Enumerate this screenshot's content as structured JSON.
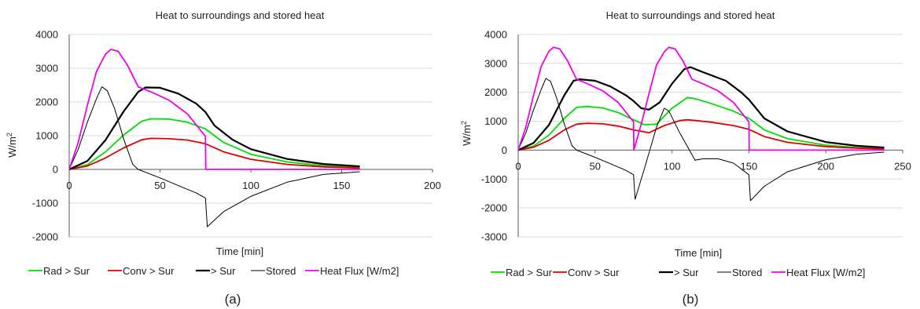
{
  "figure": {
    "captions": [
      "(a)",
      "(b)"
    ]
  },
  "chart_data": [
    {
      "type": "line",
      "title": "Heat to surroundings and stored heat",
      "xlabel": "Time [min]",
      "ylabel": "W/m",
      "ylabel_sup": "2",
      "xlim": [
        0,
        200
      ],
      "ylim": [
        -2000,
        4000
      ],
      "xticks": [
        0,
        50,
        100,
        150,
        200
      ],
      "yticks": [
        -2000,
        -1000,
        0,
        1000,
        2000,
        3000,
        4000
      ],
      "grid": "horizontal",
      "legend_position": "bottom",
      "colors": [
        "#00dd00",
        "#e00000",
        "#000000",
        "#000000",
        "#ee00ee"
      ],
      "series": [
        {
          "name": "Rad > Sur",
          "points": [
            [
              0,
              0
            ],
            [
              10,
              140
            ],
            [
              20,
              520
            ],
            [
              30,
              1020
            ],
            [
              40,
              1430
            ],
            [
              45,
              1500
            ],
            [
              55,
              1490
            ],
            [
              65,
              1400
            ],
            [
              75,
              1200
            ],
            [
              85,
              800
            ],
            [
              100,
              450
            ],
            [
              120,
              220
            ],
            [
              140,
              110
            ],
            [
              160,
              60
            ]
          ]
        },
        {
          "name": "Conv > Sur",
          "points": [
            [
              0,
              0
            ],
            [
              10,
              100
            ],
            [
              20,
              340
            ],
            [
              30,
              640
            ],
            [
              40,
              880
            ],
            [
              45,
              920
            ],
            [
              55,
              910
            ],
            [
              65,
              870
            ],
            [
              75,
              760
            ],
            [
              85,
              520
            ],
            [
              100,
              300
            ],
            [
              120,
              150
            ],
            [
              140,
              75
            ],
            [
              160,
              40
            ]
          ]
        },
        {
          "name": "> Sur",
          "points": [
            [
              0,
              0
            ],
            [
              10,
              250
            ],
            [
              20,
              870
            ],
            [
              30,
              1720
            ],
            [
              38,
              2300
            ],
            [
              42,
              2430
            ],
            [
              50,
              2420
            ],
            [
              60,
              2250
            ],
            [
              70,
              1950
            ],
            [
              75,
              1700
            ],
            [
              80,
              1300
            ],
            [
              90,
              880
            ],
            [
              100,
              600
            ],
            [
              120,
              310
            ],
            [
              140,
              160
            ],
            [
              160,
              90
            ]
          ]
        },
        {
          "name": "Stored",
          "points": [
            [
              0,
              0
            ],
            [
              5,
              600
            ],
            [
              10,
              1400
            ],
            [
              15,
              2100
            ],
            [
              18,
              2450
            ],
            [
              21,
              2330
            ],
            [
              25,
              1800
            ],
            [
              30,
              900
            ],
            [
              35,
              150
            ],
            [
              38,
              0
            ],
            [
              50,
              -250
            ],
            [
              60,
              -480
            ],
            [
              70,
              -700
            ],
            [
              75,
              -850
            ],
            [
              76,
              -1700
            ],
            [
              85,
              -1250
            ],
            [
              100,
              -800
            ],
            [
              120,
              -380
            ],
            [
              140,
              -150
            ],
            [
              160,
              -70
            ]
          ]
        },
        {
          "name": "Heat Flux [W/m2]",
          "points": [
            [
              0,
              0
            ],
            [
              5,
              800
            ],
            [
              10,
              1900
            ],
            [
              15,
              2900
            ],
            [
              20,
              3420
            ],
            [
              23,
              3560
            ],
            [
              27,
              3500
            ],
            [
              32,
              3100
            ],
            [
              38,
              2450
            ],
            [
              45,
              2300
            ],
            [
              55,
              2050
            ],
            [
              65,
              1650
            ],
            [
              75,
              980
            ],
            [
              75.2,
              0
            ],
            [
              160,
              0
            ]
          ]
        }
      ]
    },
    {
      "type": "line",
      "title": "Heat to surroundings and stored heat",
      "xlabel": "Time [min]",
      "ylabel": "W/m",
      "ylabel_sup": "2",
      "xlim": [
        0,
        250
      ],
      "ylim": [
        -3000,
        4000
      ],
      "xticks": [
        0,
        50,
        100,
        150,
        200,
        250
      ],
      "yticks": [
        -3000,
        -2000,
        -1000,
        0,
        1000,
        2000,
        3000,
        4000
      ],
      "grid": "horizontal",
      "legend_position": "bottom",
      "colors": [
        "#00dd00",
        "#e00000",
        "#000000",
        "#000000",
        "#ee00ee"
      ],
      "series": [
        {
          "name": "Rad > Sur",
          "points": [
            [
              0,
              0
            ],
            [
              10,
              140
            ],
            [
              20,
              520
            ],
            [
              30,
              1100
            ],
            [
              38,
              1480
            ],
            [
              45,
              1510
            ],
            [
              55,
              1460
            ],
            [
              65,
              1300
            ],
            [
              75,
              1050
            ],
            [
              82,
              880
            ],
            [
              90,
              900
            ],
            [
              100,
              1450
            ],
            [
              110,
              1820
            ],
            [
              115,
              1780
            ],
            [
              125,
              1620
            ],
            [
              140,
              1350
            ],
            [
              150,
              1100
            ],
            [
              160,
              700
            ],
            [
              175,
              400
            ],
            [
              200,
              170
            ],
            [
              220,
              90
            ],
            [
              238,
              50
            ]
          ]
        },
        {
          "name": "Conv > Sur",
          "points": [
            [
              0,
              0
            ],
            [
              10,
              100
            ],
            [
              20,
              340
            ],
            [
              30,
              700
            ],
            [
              38,
              900
            ],
            [
              45,
              930
            ],
            [
              55,
              910
            ],
            [
              65,
              830
            ],
            [
              75,
              700
            ],
            [
              85,
              600
            ],
            [
              95,
              850
            ],
            [
              105,
              1020
            ],
            [
              110,
              1050
            ],
            [
              125,
              970
            ],
            [
              140,
              850
            ],
            [
              150,
              720
            ],
            [
              160,
              470
            ],
            [
              175,
              270
            ],
            [
              200,
              120
            ],
            [
              220,
              70
            ],
            [
              238,
              40
            ]
          ]
        },
        {
          "name": "> Sur",
          "points": [
            [
              0,
              0
            ],
            [
              10,
              250
            ],
            [
              20,
              870
            ],
            [
              30,
              1900
            ],
            [
              36,
              2400
            ],
            [
              40,
              2450
            ],
            [
              50,
              2400
            ],
            [
              60,
              2200
            ],
            [
              70,
              1900
            ],
            [
              75,
              1700
            ],
            [
              80,
              1450
            ],
            [
              85,
              1400
            ],
            [
              92,
              1650
            ],
            [
              100,
              2300
            ],
            [
              108,
              2800
            ],
            [
              112,
              2870
            ],
            [
              120,
              2700
            ],
            [
              135,
              2400
            ],
            [
              145,
              2000
            ],
            [
              150,
              1750
            ],
            [
              160,
              1100
            ],
            [
              175,
              650
            ],
            [
              200,
              280
            ],
            [
              220,
              150
            ],
            [
              238,
              90
            ]
          ]
        },
        {
          "name": "Stored",
          "points": [
            [
              0,
              0
            ],
            [
              5,
              600
            ],
            [
              10,
              1400
            ],
            [
              15,
              2100
            ],
            [
              18,
              2480
            ],
            [
              21,
              2380
            ],
            [
              25,
              1800
            ],
            [
              30,
              900
            ],
            [
              35,
              150
            ],
            [
              38,
              0
            ],
            [
              50,
              -250
            ],
            [
              60,
              -470
            ],
            [
              70,
              -700
            ],
            [
              75,
              -850
            ],
            [
              76,
              -1700
            ],
            [
              82,
              -650
            ],
            [
              90,
              800
            ],
            [
              95,
              1450
            ],
            [
              98,
              1350
            ],
            [
              105,
              600
            ],
            [
              115,
              -350
            ],
            [
              120,
              -300
            ],
            [
              130,
              -300
            ],
            [
              140,
              -450
            ],
            [
              150,
              -850
            ],
            [
              151,
              -1750
            ],
            [
              160,
              -1250
            ],
            [
              175,
              -750
            ],
            [
              200,
              -330
            ],
            [
              220,
              -140
            ],
            [
              238,
              -70
            ]
          ]
        },
        {
          "name": "Heat Flux [W/m2]",
          "points": [
            [
              0,
              0
            ],
            [
              5,
              800
            ],
            [
              10,
              1900
            ],
            [
              15,
              2900
            ],
            [
              20,
              3420
            ],
            [
              23,
              3560
            ],
            [
              27,
              3500
            ],
            [
              32,
              3100
            ],
            [
              38,
              2450
            ],
            [
              45,
              2300
            ],
            [
              55,
              2050
            ],
            [
              65,
              1650
            ],
            [
              75,
              980
            ],
            [
              75.2,
              0
            ],
            [
              80,
              900
            ],
            [
              85,
              1950
            ],
            [
              90,
              2950
            ],
            [
              95,
              3400
            ],
            [
              98,
              3560
            ],
            [
              102,
              3500
            ],
            [
              107,
              3100
            ],
            [
              113,
              2450
            ],
            [
              120,
              2300
            ],
            [
              130,
              2050
            ],
            [
              140,
              1650
            ],
            [
              150,
              980
            ],
            [
              150.2,
              0
            ],
            [
              238,
              0
            ]
          ]
        }
      ]
    }
  ]
}
